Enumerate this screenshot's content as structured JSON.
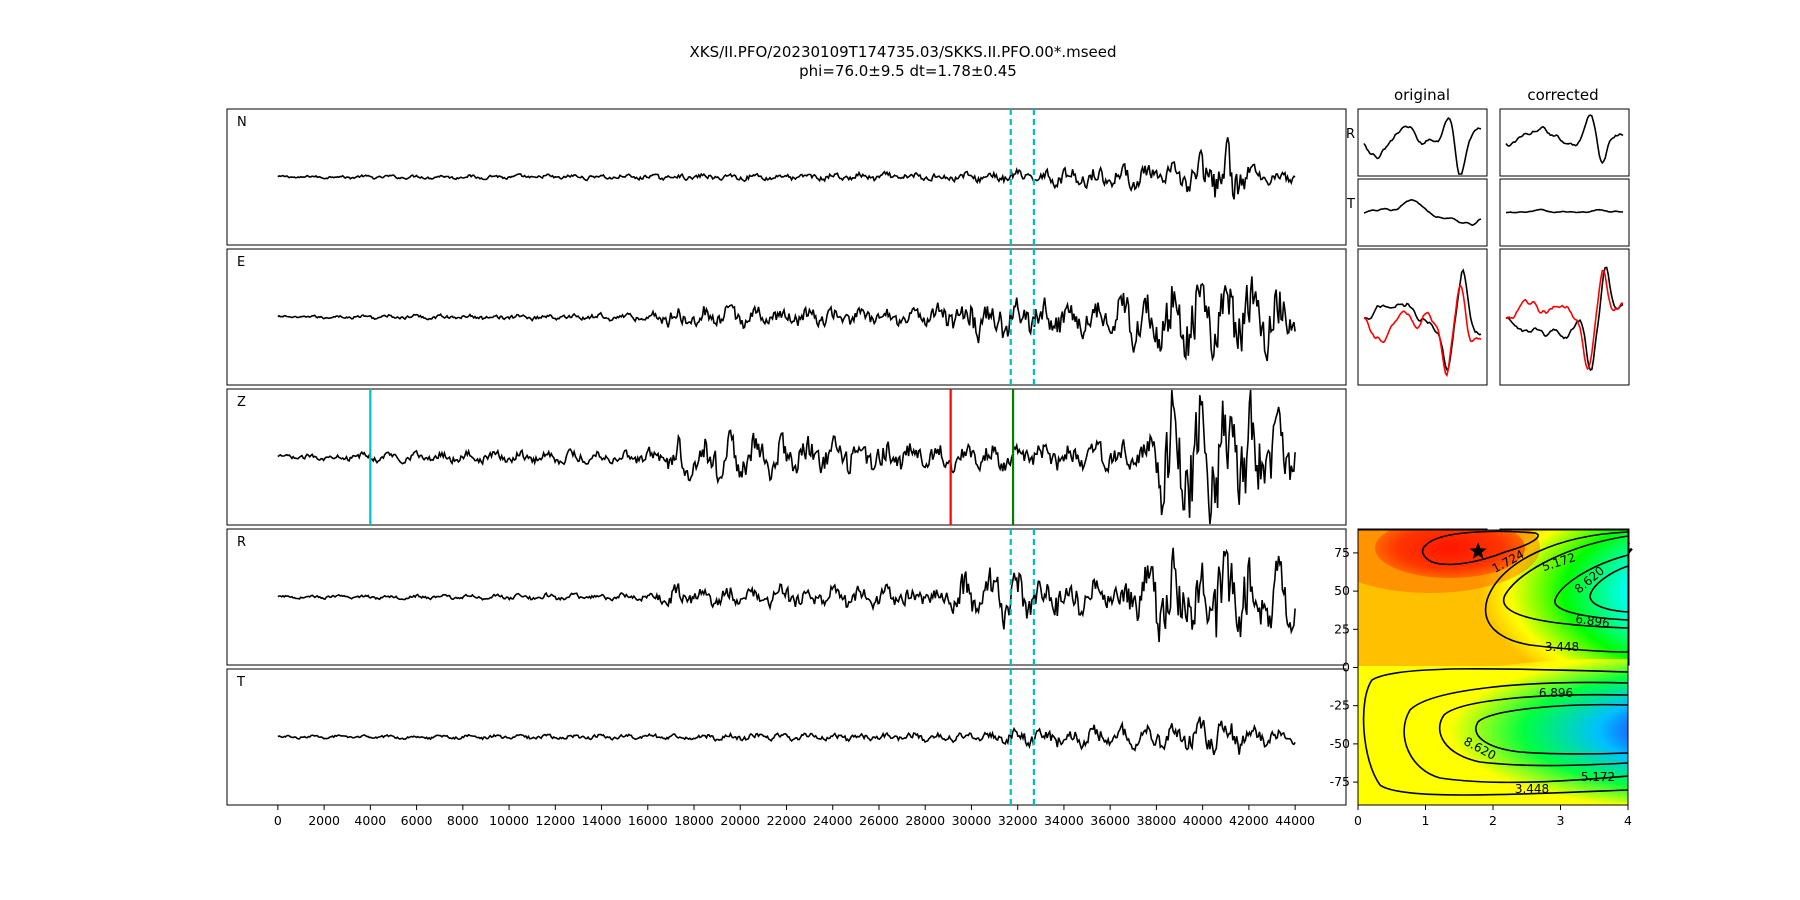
{
  "title_line1": "XKS/II.PFO/20230109T174735.03/SKKS.II.PFO.00*.mseed",
  "title_line2": "phi=76.0±9.5 dt=1.78±0.45",
  "column_titles": {
    "original": "original",
    "corrected": "corrected"
  },
  "small_row_labels": [
    "R",
    "T"
  ],
  "colors": {
    "trace": "#000000",
    "window_marker": "#00bfbf",
    "red_marker": "#ff0000",
    "green_marker": "#008000",
    "overlay_trace": "#ff0000"
  },
  "chart_data": [
    {
      "type": "line",
      "description": "three-component and rotated seismograms",
      "traces": [
        "N",
        "E",
        "Z",
        "R",
        "T"
      ],
      "xlim": [
        -2200,
        46200
      ],
      "xticks": [
        0,
        2000,
        4000,
        6000,
        8000,
        10000,
        12000,
        14000,
        16000,
        18000,
        20000,
        22000,
        24000,
        26000,
        28000,
        30000,
        32000,
        34000,
        36000,
        38000,
        40000,
        42000,
        44000
      ],
      "window_markers": [
        31700,
        32700
      ],
      "window_marker_traces": [
        "N",
        "E",
        "R",
        "T"
      ],
      "z_markers": [
        {
          "x": 4000,
          "color": "#00bfbf"
        },
        {
          "x": 29100,
          "color": "#ff0000"
        },
        {
          "x": 31800,
          "color": "#008000"
        }
      ]
    },
    {
      "type": "heatmap",
      "description": "splitting parameter energy grid with contours",
      "xlim": [
        0,
        4
      ],
      "ylim": [
        -90,
        90
      ],
      "xticks": [
        0,
        1,
        2,
        3,
        4
      ],
      "yticks": [
        75,
        50,
        25,
        0,
        -25,
        -50,
        -75
      ],
      "contour_labels": [
        "1.724",
        "5.172",
        "8.620",
        "6.896",
        "3.448",
        "6.896",
        "8.620",
        "5.172",
        "3.448"
      ],
      "best_fit": {
        "dt": 1.78,
        "phi": 76.0
      }
    }
  ]
}
